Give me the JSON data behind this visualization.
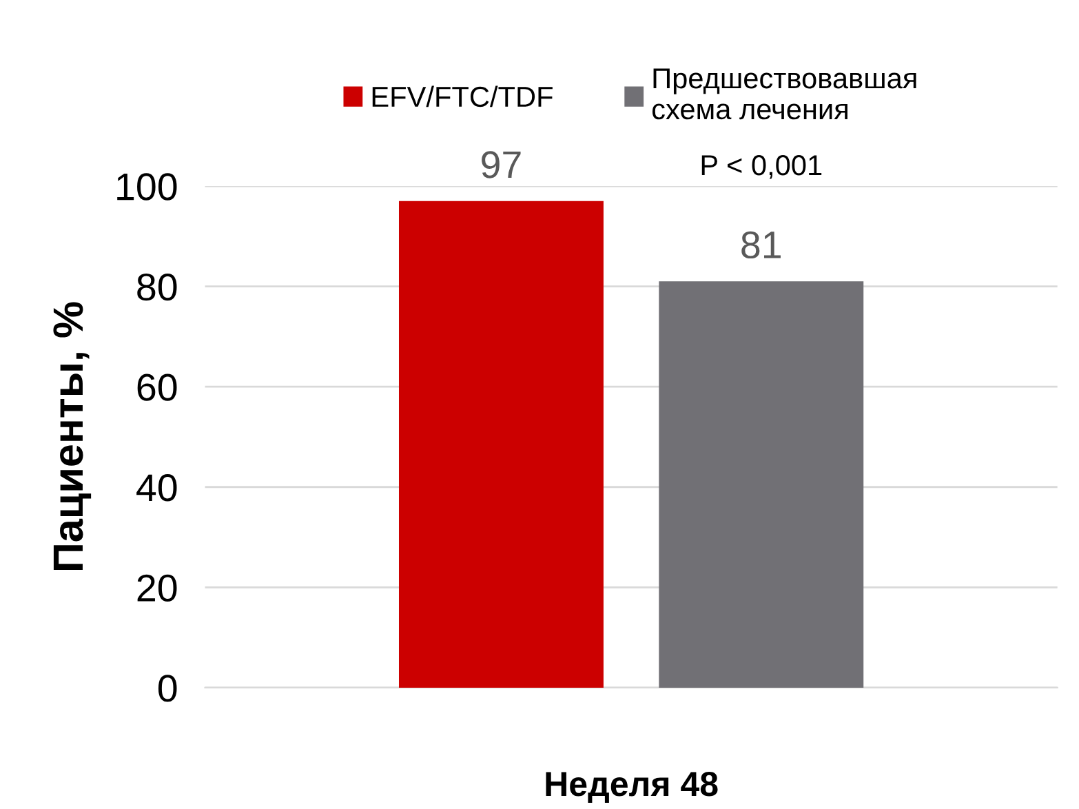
{
  "chart_data": {
    "type": "bar",
    "categories": [
      null
    ],
    "xlabel": "Неделя 48",
    "ylabel": "Пациенты, %",
    "series": [
      {
        "name": "EFV/FTC/TDF",
        "color": "#cc0000",
        "values": [
          97
        ]
      },
      {
        "name": "Предшествовавшая\nсхема лечения",
        "color": "#717075",
        "values": [
          81
        ]
      }
    ],
    "ylim": [
      0,
      100
    ],
    "yticks": [
      0,
      20,
      40,
      60,
      80,
      100
    ],
    "grid": "y",
    "legend": "top",
    "data_labels": true,
    "annotations": [
      "P < 0,001"
    ]
  }
}
